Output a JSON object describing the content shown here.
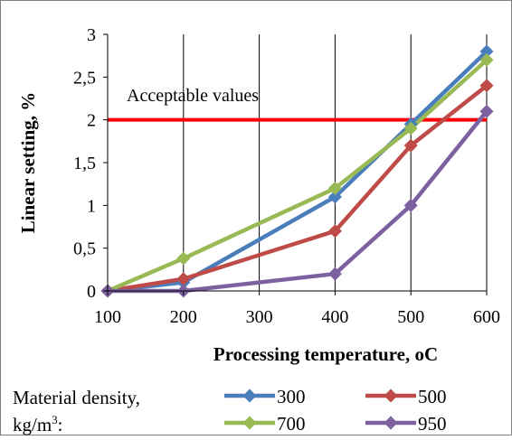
{
  "chart_data": {
    "type": "line",
    "title": "",
    "xlabel": "Processing temperature, oC",
    "ylabel": "Linear setting, %",
    "categories": [
      "100",
      "200",
      "300",
      "400",
      "500",
      "600"
    ],
    "x": [
      100,
      200,
      400,
      500,
      600
    ],
    "ylim": [
      0,
      3
    ],
    "yticks": [
      "0",
      "0,5",
      "1",
      "1,5",
      "2",
      "2,5",
      "3"
    ],
    "grid": "vertical",
    "legend_title": "Material density,",
    "legend_unit": "kg/m",
    "legend_unit_sup": "3",
    "legend_unit_suffix": ":",
    "legend_position": "bottom",
    "series": [
      {
        "name": "300",
        "color": "#4A7EBB",
        "values": [
          0,
          0.1,
          1.1,
          1.95,
          2.8
        ]
      },
      {
        "name": "500",
        "color": "#BE4B48",
        "values": [
          0,
          0.14,
          0.7,
          1.7,
          2.4
        ]
      },
      {
        "name": "700",
        "color": "#98B954",
        "values": [
          0,
          0.38,
          1.2,
          1.9,
          2.7
        ]
      },
      {
        "name": "950",
        "color": "#7D60A0",
        "values": [
          0,
          0,
          0.2,
          1.0,
          2.1
        ]
      }
    ],
    "reference_line": {
      "value": 2,
      "label": "Acceptable values",
      "color": "#FF0000"
    }
  }
}
